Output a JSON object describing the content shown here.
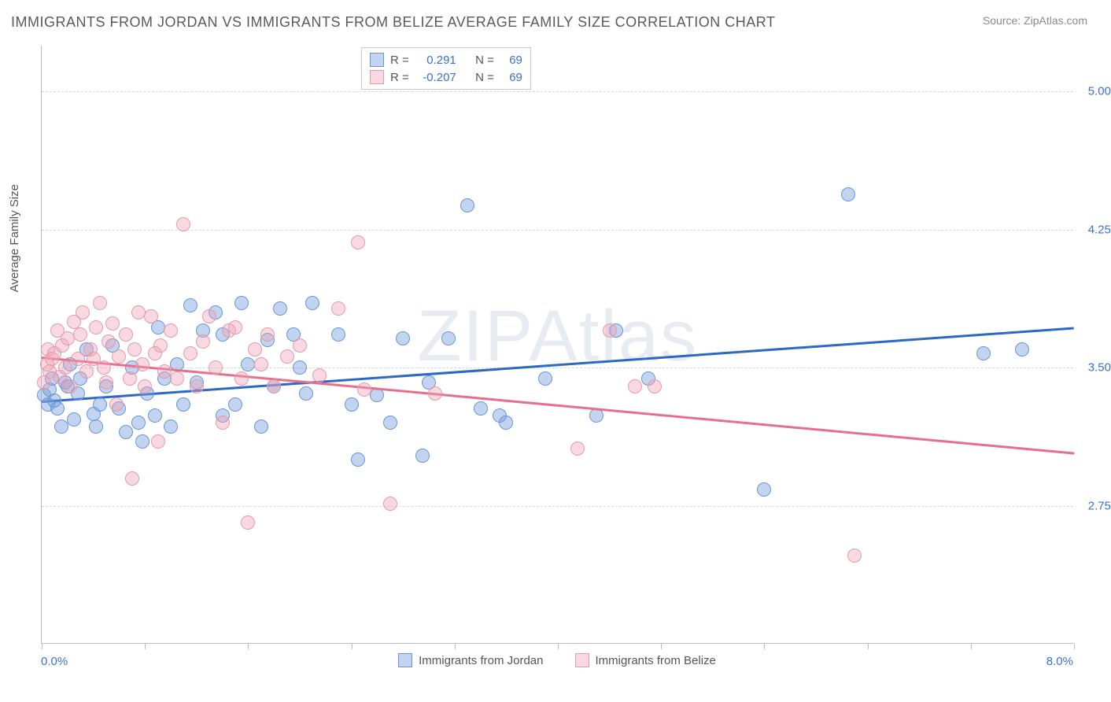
{
  "title": "IMMIGRANTS FROM JORDAN VS IMMIGRANTS FROM BELIZE AVERAGE FAMILY SIZE CORRELATION CHART",
  "source_label": "Source:",
  "source_value": "ZipAtlas.com",
  "watermark": "ZIPAtlas",
  "ylabel": "Average Family Size",
  "xaxis": {
    "min_label": "0.0%",
    "max_label": "8.0%",
    "min": 0.0,
    "max": 8.0,
    "ticks": [
      0.0,
      0.8,
      1.6,
      2.4,
      3.2,
      4.0,
      4.8,
      5.6,
      6.4,
      7.2,
      8.0
    ]
  },
  "yaxis": {
    "min": 2.0,
    "max": 5.25,
    "ticks": [
      2.75,
      3.5,
      4.25,
      5.0
    ],
    "tick_labels": [
      "2.75",
      "3.50",
      "4.25",
      "5.00"
    ]
  },
  "series": [
    {
      "name": "Immigrants from Jordan",
      "fill": "rgba(120,160,220,0.45)",
      "stroke": "#6a96d6",
      "line_color": "#2d68c4",
      "R": "0.291",
      "N": "69",
      "trend": {
        "x1": 0.0,
        "y1": 3.32,
        "x2": 8.0,
        "y2": 3.72
      },
      "points": [
        [
          0.02,
          3.35
        ],
        [
          0.05,
          3.3
        ],
        [
          0.06,
          3.38
        ],
        [
          0.08,
          3.44
        ],
        [
          0.1,
          3.32
        ],
        [
          0.12,
          3.28
        ],
        [
          0.15,
          3.18
        ],
        [
          0.18,
          3.42
        ],
        [
          0.2,
          3.4
        ],
        [
          0.22,
          3.52
        ],
        [
          0.25,
          3.22
        ],
        [
          0.28,
          3.36
        ],
        [
          0.3,
          3.44
        ],
        [
          0.35,
          3.6
        ],
        [
          0.4,
          3.25
        ],
        [
          0.42,
          3.18
        ],
        [
          0.45,
          3.3
        ],
        [
          0.5,
          3.4
        ],
        [
          0.55,
          3.62
        ],
        [
          0.6,
          3.28
        ],
        [
          0.65,
          3.15
        ],
        [
          0.7,
          3.5
        ],
        [
          0.75,
          3.2
        ],
        [
          0.78,
          3.1
        ],
        [
          0.82,
          3.36
        ],
        [
          0.88,
          3.24
        ],
        [
          0.9,
          3.72
        ],
        [
          0.95,
          3.44
        ],
        [
          1.0,
          3.18
        ],
        [
          1.05,
          3.52
        ],
        [
          1.1,
          3.3
        ],
        [
          1.15,
          3.84
        ],
        [
          1.2,
          3.42
        ],
        [
          1.25,
          3.7
        ],
        [
          1.35,
          3.8
        ],
        [
          1.4,
          3.24
        ],
        [
          1.4,
          3.68
        ],
        [
          1.5,
          3.3
        ],
        [
          1.55,
          3.85
        ],
        [
          1.6,
          3.52
        ],
        [
          1.7,
          3.18
        ],
        [
          1.75,
          3.65
        ],
        [
          1.8,
          3.4
        ],
        [
          1.85,
          3.82
        ],
        [
          1.95,
          3.68
        ],
        [
          2.0,
          3.5
        ],
        [
          2.05,
          3.36
        ],
        [
          2.1,
          3.85
        ],
        [
          2.3,
          3.68
        ],
        [
          2.4,
          3.3
        ],
        [
          2.45,
          3.0
        ],
        [
          2.6,
          3.35
        ],
        [
          2.7,
          3.2
        ],
        [
          2.8,
          3.66
        ],
        [
          2.95,
          3.02
        ],
        [
          3.0,
          3.42
        ],
        [
          3.15,
          3.66
        ],
        [
          3.3,
          4.38
        ],
        [
          3.4,
          3.28
        ],
        [
          3.55,
          3.24
        ],
        [
          3.6,
          3.2
        ],
        [
          3.9,
          3.44
        ],
        [
          4.3,
          3.24
        ],
        [
          4.45,
          3.7
        ],
        [
          4.7,
          3.44
        ],
        [
          5.6,
          2.84
        ],
        [
          6.25,
          4.44
        ],
        [
          7.3,
          3.58
        ],
        [
          7.6,
          3.6
        ]
      ]
    },
    {
      "name": "Immigrants from Belize",
      "fill": "rgba(240,160,180,0.40)",
      "stroke": "#e49aad",
      "line_color": "#e76f8c",
      "R": "-0.207",
      "N": "69",
      "trend": {
        "x1": 0.0,
        "y1": 3.56,
        "x2": 8.0,
        "y2": 3.04
      },
      "points": [
        [
          0.02,
          3.42
        ],
        [
          0.04,
          3.52
        ],
        [
          0.05,
          3.6
        ],
        [
          0.06,
          3.48
        ],
        [
          0.08,
          3.55
        ],
        [
          0.1,
          3.58
        ],
        [
          0.12,
          3.7
        ],
        [
          0.14,
          3.45
        ],
        [
          0.16,
          3.62
        ],
        [
          0.18,
          3.5
        ],
        [
          0.2,
          3.66
        ],
        [
          0.22,
          3.4
        ],
        [
          0.25,
          3.75
        ],
        [
          0.28,
          3.55
        ],
        [
          0.3,
          3.68
        ],
        [
          0.32,
          3.8
        ],
        [
          0.35,
          3.48
        ],
        [
          0.38,
          3.6
        ],
        [
          0.4,
          3.55
        ],
        [
          0.42,
          3.72
        ],
        [
          0.45,
          3.85
        ],
        [
          0.48,
          3.5
        ],
        [
          0.5,
          3.42
        ],
        [
          0.52,
          3.64
        ],
        [
          0.55,
          3.74
        ],
        [
          0.58,
          3.3
        ],
        [
          0.6,
          3.56
        ],
        [
          0.65,
          3.68
        ],
        [
          0.68,
          3.44
        ],
        [
          0.7,
          2.9
        ],
        [
          0.72,
          3.6
        ],
        [
          0.75,
          3.8
        ],
        [
          0.78,
          3.52
        ],
        [
          0.8,
          3.4
        ],
        [
          0.85,
          3.78
        ],
        [
          0.88,
          3.58
        ],
        [
          0.9,
          3.1
        ],
        [
          0.92,
          3.62
        ],
        [
          0.95,
          3.48
        ],
        [
          1.0,
          3.7
        ],
        [
          1.05,
          3.44
        ],
        [
          1.1,
          4.28
        ],
        [
          1.15,
          3.58
        ],
        [
          1.2,
          3.4
        ],
        [
          1.25,
          3.64
        ],
        [
          1.3,
          3.78
        ],
        [
          1.35,
          3.5
        ],
        [
          1.4,
          3.2
        ],
        [
          1.45,
          3.7
        ],
        [
          1.5,
          3.72
        ],
        [
          1.55,
          3.44
        ],
        [
          1.6,
          2.66
        ],
        [
          1.65,
          3.6
        ],
        [
          1.7,
          3.52
        ],
        [
          1.75,
          3.68
        ],
        [
          1.8,
          3.4
        ],
        [
          1.9,
          3.56
        ],
        [
          2.0,
          3.62
        ],
        [
          2.15,
          3.46
        ],
        [
          2.3,
          3.82
        ],
        [
          2.45,
          4.18
        ],
        [
          2.5,
          3.38
        ],
        [
          2.7,
          2.76
        ],
        [
          3.05,
          3.36
        ],
        [
          4.15,
          3.06
        ],
        [
          4.4,
          3.7
        ],
        [
          4.75,
          3.4
        ],
        [
          6.3,
          2.48
        ],
        [
          4.6,
          3.4
        ]
      ]
    }
  ],
  "legend": {
    "r_label": "R =",
    "n_label": "N ="
  },
  "colors": {
    "axis": "#bdbdbd",
    "grid": "#d8d8d8",
    "text_muted": "#5a5a5a",
    "value": "#3a6fd8"
  }
}
